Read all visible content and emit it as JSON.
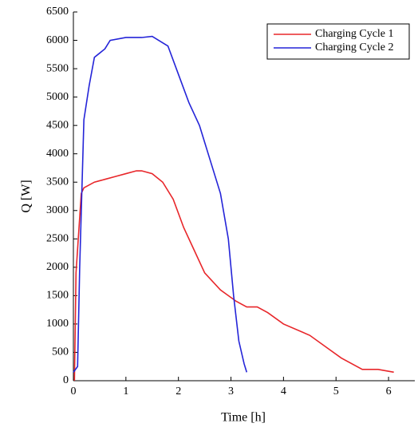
{
  "chart_data": {
    "type": "line",
    "xlabel": "Time [h]",
    "ylabel": "Q [W]",
    "xlim": [
      0,
      6.5
    ],
    "xticks": [
      0,
      1,
      2,
      3,
      4,
      5,
      6
    ],
    "ylim": [
      0,
      6500
    ],
    "yticks": [
      0,
      500,
      1000,
      1500,
      2000,
      2500,
      3000,
      3500,
      4000,
      4500,
      5000,
      5500,
      6000,
      6500
    ],
    "legend": "upper right",
    "series": [
      {
        "name": "Charging Cycle 1",
        "color": "#e8262a",
        "x": [
          0.02,
          0.05,
          0.15,
          0.2,
          0.4,
          0.6,
          0.8,
          1.0,
          1.2,
          1.3,
          1.5,
          1.7,
          1.9,
          2.1,
          2.3,
          2.5,
          2.8,
          3.1,
          3.3,
          3.5,
          3.7,
          4.0,
          4.5,
          4.8,
          5.1,
          5.5,
          5.8,
          6.1
        ],
        "values": [
          0,
          1900,
          3300,
          3400,
          3500,
          3550,
          3600,
          3650,
          3700,
          3700,
          3650,
          3500,
          3200,
          2700,
          2300,
          1900,
          1600,
          1400,
          1300,
          1300,
          1200,
          1000,
          800,
          600,
          400,
          200,
          200,
          150
        ]
      },
      {
        "name": "Charging Cycle 2",
        "color": "#2424d8",
        "x": [
          0,
          0.08,
          0.12,
          0.2,
          0.3,
          0.4,
          0.6,
          0.7,
          1.0,
          1.3,
          1.5,
          1.8,
          2.0,
          2.2,
          2.4,
          2.6,
          2.8,
          2.95,
          3.05,
          3.15,
          3.25,
          3.3
        ],
        "values": [
          150,
          250,
          2000,
          4600,
          5200,
          5700,
          5850,
          6000,
          6050,
          6050,
          6070,
          5900,
          5400,
          4900,
          4500,
          3900,
          3300,
          2500,
          1500,
          700,
          300,
          150
        ]
      }
    ]
  }
}
